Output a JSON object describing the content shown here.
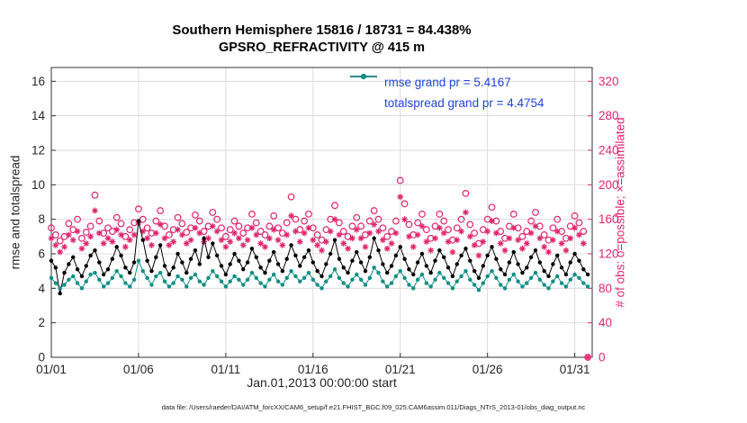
{
  "title": {
    "line1": "Southern Hemisphere 15816 / 18731 = 84.438%",
    "line2": "GPSRO_REFRACTIVITY @ 415 m"
  },
  "axes": {
    "xlabel": "Jan.01,2013 00:00:00 start",
    "ylabel_left": "rmse and totalspread",
    "ylabel_right": "# of obs: o=possible; ×=assimilated"
  },
  "caption": "data file: /Users/raeder/DAI/ATM_forcXX/CAM6_setup/f.e21.FHIST_BGC.f09_025.CAM6assim.011/Diags_NTrS_2013-01/obs_diag_output.nc",
  "legend": {
    "text_color": "#2244dd",
    "items": [
      {
        "label": "rmse grand pr = 5.4167",
        "color": "#000000"
      },
      {
        "label": "totalspread grand pr = 4.4754",
        "color": "#0e8f85"
      }
    ]
  },
  "colors": {
    "crimson": "#e0256e",
    "teal": "#0e8f85",
    "black": "#000000",
    "grid": "#dcdcdc",
    "axis_box": "#333333",
    "tick_text": "#262626"
  },
  "chart_data": {
    "type": "line",
    "title": "Southern Hemisphere 15816 / 18731 = 84.438% | GPSRO_REFRACTIVITY @ 415 m",
    "x_start": 1,
    "x_step": 0.25,
    "n_points": 124,
    "xlim": [
      1,
      32
    ],
    "xticks": [
      1,
      6,
      11,
      16,
      21,
      26,
      31
    ],
    "xtick_labels": [
      "01/01",
      "01/06",
      "01/11",
      "01/16",
      "01/21",
      "01/26",
      "01/31"
    ],
    "grid": true,
    "legend_position": "top-center-inside",
    "left_axis": {
      "label": "rmse and totalspread",
      "ylim": [
        0,
        16.8
      ],
      "ticks": [
        0,
        2,
        4,
        6,
        8,
        10,
        12,
        14,
        16
      ]
    },
    "right_axis": {
      "label": "# of obs: o=possible; ×=assimilated",
      "ylim": [
        0,
        336
      ],
      "ticks": [
        0,
        40,
        80,
        120,
        160,
        200,
        240,
        280,
        320
      ]
    },
    "series": [
      {
        "name": "rmse",
        "axis": "left",
        "color": "#000000",
        "marker": "dot",
        "line": true,
        "grand_mean": 5.4167,
        "values": [
          5.6,
          5.2,
          3.7,
          4.9,
          5.4,
          5.8,
          5.1,
          4.7,
          5.3,
          5.9,
          6.2,
          5.5,
          4.8,
          5.1,
          5.7,
          6.4,
          5.9,
          5.2,
          4.9,
          5.5,
          7.9,
          6.8,
          5.6,
          5.0,
          5.8,
          6.5,
          5.3,
          4.8,
          5.2,
          6.0,
          5.5,
          4.9,
          5.7,
          6.2,
          5.4,
          6.9,
          5.8,
          6.6,
          5.9,
          5.3,
          4.8,
          5.4,
          6.0,
          5.6,
          5.1,
          5.5,
          6.3,
          5.8,
          5.2,
          4.9,
          5.6,
          6.1,
          5.4,
          5.0,
          5.7,
          6.5,
          5.9,
          5.3,
          5.8,
          6.2,
          5.5,
          5.0,
          4.7,
          5.4,
          6.0,
          6.8,
          5.7,
          5.2,
          4.9,
          5.6,
          6.1,
          5.5,
          5.0,
          5.8,
          6.9,
          6.2,
          5.4,
          4.9,
          5.3,
          5.9,
          6.4,
          5.7,
          5.1,
          4.8,
          5.5,
          6.0,
          5.3,
          4.9,
          5.6,
          6.2,
          5.8,
          5.2,
          4.7,
          5.4,
          5.9,
          6.3,
          5.6,
          5.0,
          4.6,
          5.3,
          5.9,
          6.4,
          5.7,
          5.1,
          4.8,
          5.5,
          6.1,
          5.4,
          4.9,
          5.2,
          5.8,
          6.2,
          5.5,
          5.0,
          4.7,
          5.4,
          5.9,
          5.2,
          4.8,
          5.5,
          6.0,
          5.6,
          5.1,
          4.8
        ]
      },
      {
        "name": "totalspread",
        "axis": "left",
        "color": "#0e8f85",
        "marker": "dot",
        "line": true,
        "grand_mean": 4.4754,
        "values": [
          4.6,
          4.3,
          4.0,
          4.2,
          4.5,
          4.7,
          4.3,
          4.0,
          4.4,
          4.8,
          4.9,
          4.5,
          4.1,
          4.3,
          4.6,
          5.0,
          4.7,
          4.3,
          4.1,
          4.5,
          5.6,
          5.0,
          4.6,
          4.2,
          4.7,
          4.9,
          4.4,
          4.1,
          4.3,
          4.7,
          4.5,
          4.1,
          4.6,
          4.8,
          4.4,
          4.2,
          4.6,
          5.0,
          4.7,
          4.4,
          4.1,
          4.4,
          4.7,
          4.5,
          4.2,
          4.5,
          4.9,
          4.6,
          4.3,
          4.1,
          4.5,
          4.8,
          4.4,
          4.2,
          4.6,
          5.0,
          4.7,
          4.4,
          4.6,
          4.9,
          4.5,
          4.2,
          4.0,
          4.4,
          4.7,
          5.1,
          4.6,
          4.3,
          4.1,
          4.5,
          4.8,
          4.5,
          4.2,
          4.6,
          5.2,
          4.9,
          4.4,
          4.1,
          4.3,
          4.7,
          5.0,
          4.6,
          4.2,
          4.0,
          4.5,
          4.8,
          4.3,
          4.1,
          4.5,
          4.9,
          4.6,
          4.3,
          4.0,
          4.4,
          4.7,
          5.0,
          4.5,
          4.2,
          3.9,
          4.3,
          4.7,
          5.0,
          4.6,
          4.2,
          4.0,
          4.5,
          4.8,
          4.4,
          4.1,
          4.3,
          4.6,
          4.9,
          4.5,
          4.2,
          4.0,
          4.4,
          4.7,
          4.3,
          4.1,
          4.5,
          4.8,
          4.6,
          4.3,
          4.1
        ]
      },
      {
        "name": "possible",
        "axis": "right",
        "color": "#e0256e",
        "marker": "circle",
        "line": false,
        "values": [
          150,
          142,
          135,
          140,
          155,
          148,
          160,
          138,
          145,
          152,
          188,
          158,
          144,
          150,
          146,
          162,
          155,
          140,
          148,
          156,
          172,
          160,
          150,
          144,
          158,
          170,
          152,
          142,
          148,
          162,
          155,
          145,
          150,
          165,
          158,
          146,
          152,
          168,
          160,
          150,
          140,
          148,
          158,
          152,
          144,
          150,
          166,
          156,
          146,
          142,
          152,
          164,
          150,
          144,
          156,
          186,
          160,
          148,
          158,
          166,
          150,
          142,
          136,
          148,
          160,
          176,
          156,
          146,
          140,
          152,
          162,
          152,
          142,
          158,
          170,
          160,
          150,
          140,
          146,
          158,
          205,
          178,
          154,
          142,
          156,
          166,
          148,
          138,
          152,
          166,
          158,
          148,
          136,
          150,
          160,
          190,
          154,
          144,
          132,
          148,
          160,
          174,
          158,
          146,
          138,
          152,
          166,
          150,
          140,
          146,
          158,
          168,
          152,
          142,
          136,
          150,
          160,
          146,
          138,
          152,
          164,
          156,
          146,
          0
        ]
      },
      {
        "name": "assimilated",
        "axis": "right",
        "color": "#e0256e",
        "marker": "asterisk",
        "line": false,
        "values": [
          138,
          130,
          122,
          128,
          142,
          136,
          146,
          126,
          132,
          140,
          170,
          144,
          132,
          138,
          134,
          148,
          142,
          128,
          136,
          142,
          156,
          146,
          138,
          130,
          144,
          154,
          138,
          130,
          134,
          148,
          142,
          132,
          136,
          150,
          144,
          134,
          138,
          152,
          146,
          136,
          128,
          134,
          144,
          138,
          130,
          136,
          150,
          142,
          132,
          128,
          138,
          148,
          136,
          130,
          142,
          164,
          146,
          134,
          144,
          150,
          136,
          130,
          124,
          134,
          146,
          160,
          142,
          132,
          126,
          138,
          148,
          138,
          128,
          144,
          154,
          146,
          136,
          126,
          132,
          144,
          186,
          160,
          140,
          128,
          142,
          152,
          134,
          124,
          138,
          150,
          144,
          134,
          122,
          136,
          146,
          168,
          140,
          130,
          118,
          134,
          146,
          158,
          144,
          132,
          124,
          138,
          150,
          136,
          126,
          132,
          144,
          152,
          138,
          128,
          122,
          136,
          146,
          132,
          124,
          138,
          150,
          142,
          132,
          0
        ]
      }
    ]
  }
}
